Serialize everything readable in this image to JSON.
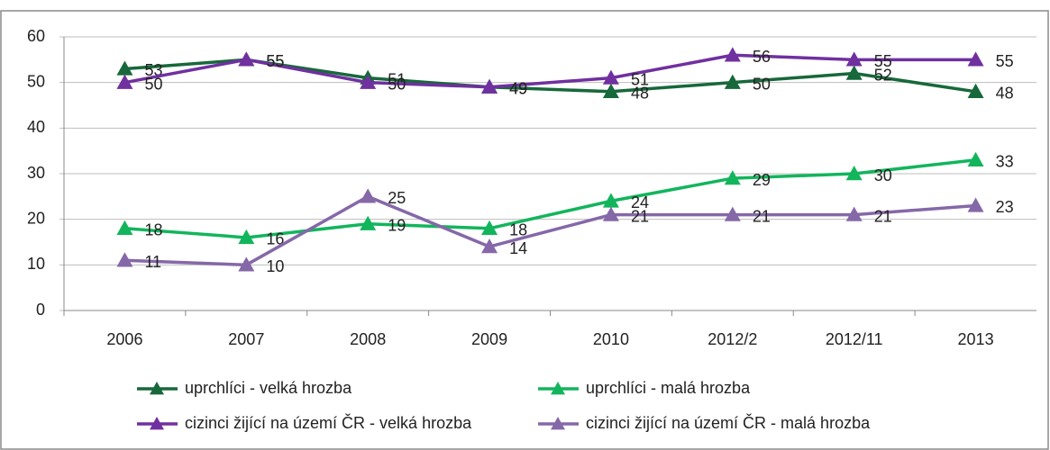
{
  "chart_data": {
    "type": "line",
    "categories": [
      "2006",
      "2007",
      "2008",
      "2009",
      "2010",
      "2012/2",
      "2012/11",
      "2013"
    ],
    "series": [
      {
        "name": "uprchlíci - velká hrozba",
        "color": "#17683a",
        "values": [
          53,
          55,
          51,
          49,
          48,
          50,
          52,
          48
        ]
      },
      {
        "name": "uprchlíci - malá hrozba",
        "color": "#12b55c",
        "values": [
          18,
          16,
          19,
          18,
          24,
          29,
          30,
          33
        ]
      },
      {
        "name": "cizinci žijící na území ČR - velká hrozba",
        "color": "#7030a0",
        "values": [
          50,
          55,
          50,
          49,
          51,
          56,
          55,
          55
        ]
      },
      {
        "name": "cizinci žijící na území ČR - malá hrozba",
        "color": "#8568a8",
        "values": [
          11,
          10,
          25,
          14,
          21,
          21,
          21,
          23
        ]
      }
    ],
    "ylim": [
      0,
      60
    ],
    "yticks": [
      0,
      10,
      20,
      30,
      40,
      50,
      60
    ],
    "grid": true,
    "legend": "bottom"
  }
}
